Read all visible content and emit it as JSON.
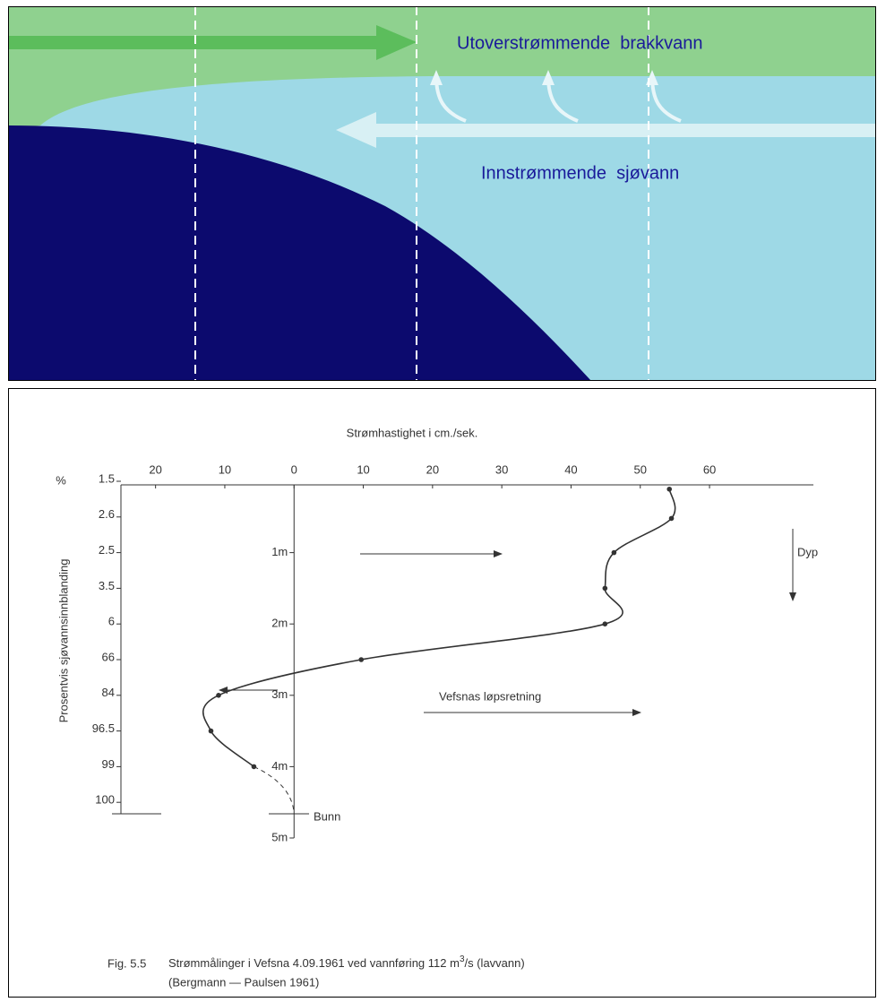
{
  "diagram": {
    "labels": [
      "Utoverstrømmende  brakkvann",
      "Innstrømmende  sjøvann"
    ]
  },
  "chart_data": {
    "type": "line",
    "xlabel": "Strømhastighet i cm./sek.",
    "ylabel": "Prosentvis sjøvannsinnblanding",
    "percent_symbol": "%",
    "percent_labels": [
      "1.5",
      "2.6",
      "2.5",
      "3.5",
      "6",
      "66",
      "84",
      "96.5",
      "99",
      "100"
    ],
    "xlim": [
      -25,
      75
    ],
    "xticks": [
      {
        "value": -20,
        "label": "20"
      },
      {
        "value": -10,
        "label": "10"
      },
      0,
      10,
      20,
      30,
      40,
      50,
      60
    ],
    "ylim": [
      0,
      5
    ],
    "yticks": [
      {
        "value": 1,
        "label": "1m"
      },
      {
        "value": 2,
        "label": "2m"
      },
      {
        "value": 3,
        "label": "3m"
      },
      {
        "value": 4,
        "label": "4m"
      },
      {
        "value": 5,
        "label": "5m"
      }
    ],
    "x": [
      54.2,
      54.5,
      46.2,
      44.9,
      44.9,
      9.7,
      -10.9,
      -12,
      -5.8
    ],
    "values": [
      0.11,
      0.52,
      1.0,
      1.5,
      2.0,
      2.5,
      3.0,
      3.5,
      4.0
    ],
    "color": "#333333",
    "annotations": {
      "depth": "Dyp",
      "direction": "Vefsnas løpsretning",
      "bottom": "Bunn"
    },
    "caption": {
      "number": "Fig. 5.5",
      "text": "Strømmålinger i Vefsna 4.09.1961 ved vannføring 112 m",
      "superscript": "3",
      "text_end": "/s (lavvann)",
      "source": "(Bergmann — Paulsen 1961)"
    }
  }
}
